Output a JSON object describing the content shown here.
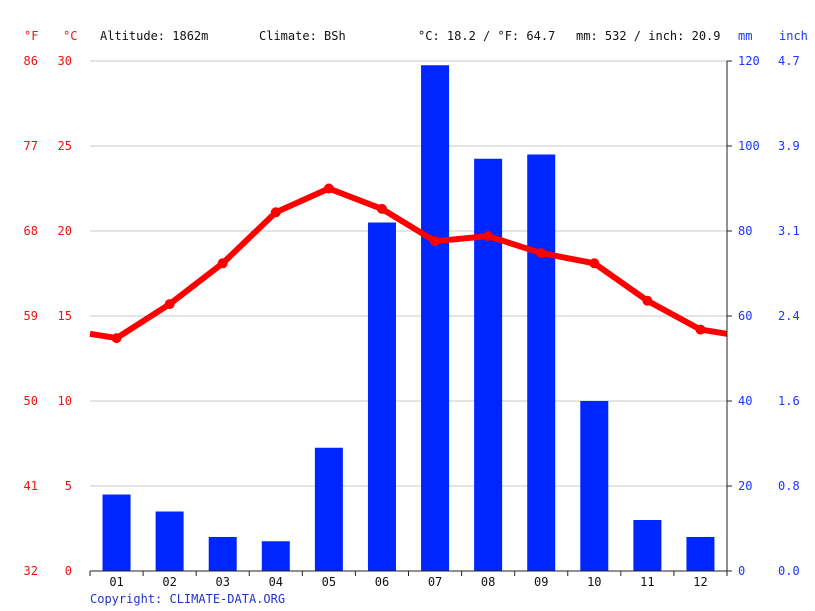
{
  "header": {
    "unit_f": "°F",
    "unit_c": "°C",
    "altitude": "Altitude: 1862m",
    "climate": "Climate: BSh",
    "temperature_avg": "°C: 18.2 / °F: 64.7",
    "precipitation_total": "mm: 532 / inch: 20.9",
    "unit_mm": "mm",
    "unit_inch": "inch"
  },
  "footer": {
    "copyright": "Copyright: CLIMATE-DATA.ORG"
  },
  "colors": {
    "temperature_line": "#ff0000",
    "precipitation_bar": "#0026ff",
    "left_axis_text": "#ee1111",
    "right_axis_text": "#1a35ff",
    "grid": "#c8c8c8"
  },
  "chart_data": {
    "type": "bar",
    "categories": [
      "01",
      "02",
      "03",
      "04",
      "05",
      "06",
      "07",
      "08",
      "09",
      "10",
      "11",
      "12"
    ],
    "series": [
      {
        "chart_type": "bar",
        "axis": "right",
        "unit": "mm",
        "values": [
          18,
          14,
          8,
          7,
          29,
          82,
          119,
          97,
          98,
          40,
          12,
          8
        ]
      },
      {
        "chart_type": "line",
        "axis": "left",
        "unit": "°C",
        "values": [
          13.7,
          15.7,
          18.1,
          21.1,
          22.5,
          21.3,
          19.4,
          19.7,
          18.7,
          18.1,
          15.9,
          14.2
        ]
      }
    ],
    "left_axis": {
      "ylim": [
        0,
        30
      ],
      "celsius_ticks": [
        "0",
        "5",
        "10",
        "15",
        "20",
        "25",
        "30"
      ],
      "fahrenheit_ticks": [
        "32",
        "41",
        "50",
        "59",
        "68",
        "77",
        "86"
      ]
    },
    "right_axis": {
      "ylim": [
        0,
        120
      ],
      "mm_ticks": [
        "0",
        "20",
        "40",
        "60",
        "80",
        "100",
        "120"
      ],
      "inch_ticks": [
        "0.0",
        "0.8",
        "1.6",
        "2.4",
        "3.1",
        "3.9",
        "4.7"
      ]
    },
    "grid": true,
    "legend": "none"
  }
}
